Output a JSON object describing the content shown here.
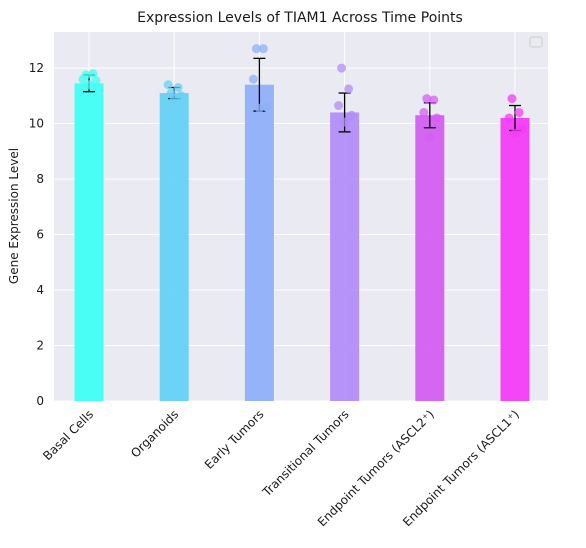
{
  "chart_data": {
    "type": "bar",
    "title": "Expression Levels of TIAM1 Across Time Points",
    "xlabel": "",
    "ylabel": "Gene Expression Level",
    "ylim": [
      0,
      13.3
    ],
    "yticks": [
      0,
      2,
      4,
      6,
      8,
      10,
      12
    ],
    "grid": true,
    "legend": "top-right (empty)",
    "categories": [
      "Basal Cells",
      "Organoids",
      "Early Tumors",
      "Transitional Tumors",
      "Endpoint Tumors (ASCL2⁺)",
      "Endpoint Tumors (ASCL1⁺)"
    ],
    "values": [
      11.45,
      11.1,
      11.4,
      10.4,
      10.3,
      10.2
    ],
    "errors": [
      0.3,
      0.2,
      0.95,
      0.7,
      0.45,
      0.45
    ],
    "colors": [
      "#3ffff4",
      "#66d2f5",
      "#8fb0f8",
      "#b28ef8",
      "#d35ff1",
      "#f43cf5"
    ],
    "points": [
      [
        11.75,
        11.8,
        11.6,
        11.55,
        11.4
      ],
      [
        11.1,
        11.3,
        11.4,
        11.0,
        10.9
      ],
      [
        12.7,
        12.7,
        11.6,
        10.6,
        10.55
      ],
      [
        12.0,
        11.25,
        10.65,
        10.3,
        10.05
      ],
      [
        10.9,
        10.85,
        10.4,
        10.2,
        9.5
      ],
      [
        10.9,
        10.4,
        10.2,
        9.8,
        9.65
      ]
    ]
  }
}
